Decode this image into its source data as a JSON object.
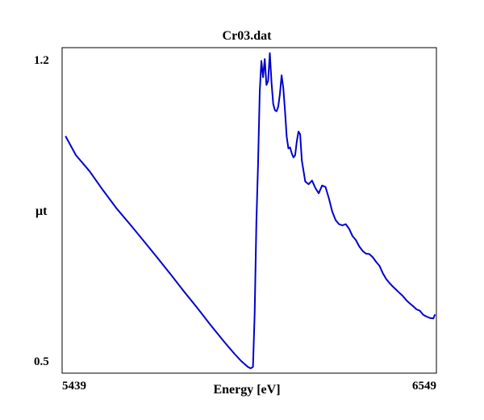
{
  "chart_data": {
    "type": "line",
    "title": "Cr03.dat",
    "xlabel": "Energy [eV]",
    "ylabel": "μt",
    "xlim": [
      5439,
      6549
    ],
    "ylim": [
      0.5,
      1.2
    ],
    "x_tick_labels": [
      "5439",
      "6549"
    ],
    "y_tick_labels": [
      "1.2",
      "0.5"
    ],
    "grid": false,
    "line_color": "#0000cc",
    "series": [
      {
        "x": [
          5449,
          5480,
          5520,
          5560,
          5600,
          5640,
          5680,
          5720,
          5760,
          5800,
          5840,
          5880,
          5920,
          5950,
          5970,
          5990,
          5998,
          6005,
          6010,
          6015,
          6020,
          6025,
          6030,
          6035,
          6040,
          6045,
          6050,
          6055,
          6060,
          6065,
          6070,
          6075,
          6080,
          6085,
          6090,
          6095,
          6100,
          6105,
          6110,
          6115,
          6120,
          6125,
          6130,
          6135,
          6140,
          6145,
          6150,
          6160,
          6170,
          6180,
          6190,
          6200,
          6210,
          6220,
          6230,
          6240,
          6250,
          6260,
          6270,
          6280,
          6290,
          6300,
          6310,
          6320,
          6330,
          6340,
          6350,
          6360,
          6370,
          6380,
          6390,
          6400,
          6410,
          6420,
          6430,
          6440,
          6450,
          6460,
          6470,
          6480,
          6490,
          6500,
          6510,
          6520,
          6530,
          6540,
          6545
        ],
        "y": [
          1.012,
          0.97,
          0.935,
          0.893,
          0.853,
          0.818,
          0.782,
          0.745,
          0.708,
          0.67,
          0.633,
          0.595,
          0.558,
          0.532,
          0.516,
          0.503,
          0.5,
          0.503,
          0.62,
          0.82,
          0.95,
          1.11,
          1.178,
          1.142,
          1.182,
          1.125,
          1.134,
          1.195,
          1.13,
          1.083,
          1.069,
          1.067,
          1.077,
          1.105,
          1.146,
          1.118,
          1.068,
          1.011,
          0.985,
          0.987,
          0.974,
          0.965,
          0.97,
          1.0,
          1.022,
          1.016,
          0.958,
          0.912,
          0.906,
          0.914,
          0.898,
          0.886,
          0.903,
          0.9,
          0.875,
          0.846,
          0.827,
          0.818,
          0.815,
          0.818,
          0.808,
          0.792,
          0.783,
          0.769,
          0.759,
          0.753,
          0.752,
          0.745,
          0.735,
          0.726,
          0.71,
          0.697,
          0.688,
          0.68,
          0.673,
          0.666,
          0.659,
          0.65,
          0.643,
          0.637,
          0.63,
          0.627,
          0.618,
          0.614,
          0.611,
          0.61,
          0.619
        ]
      }
    ]
  }
}
